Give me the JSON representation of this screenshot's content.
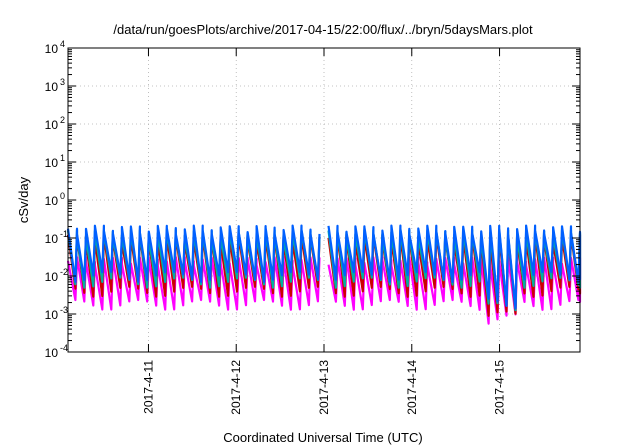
{
  "chart_data": {
    "type": "line",
    "title": "/data/run/goesPlots/archive/2017-04-15/22:00/flux/../bryn/5daysMars.plot",
    "xlabel": "Coordinated Universal Time (UTC)",
    "ylabel": "cSv/day",
    "yscale": "log",
    "ylim": [
      0.0001,
      10000
    ],
    "xlim": [
      "2017-04-10 02:00",
      "2017-04-15 22:00"
    ],
    "x_ticks": [
      "2017-4-11",
      "2017-4-12",
      "2017-4-13",
      "2017-4-14",
      "2017-4-15"
    ],
    "y_ticks": [
      {
        "value": 0.0001,
        "base": "10",
        "exp": "-4"
      },
      {
        "value": 0.001,
        "base": "10",
        "exp": "-3"
      },
      {
        "value": 0.01,
        "base": "10",
        "exp": "-2"
      },
      {
        "value": 0.1,
        "base": "10",
        "exp": "-1"
      },
      {
        "value": 1,
        "base": "10",
        "exp": "0"
      },
      {
        "value": 10,
        "base": "10",
        "exp": "1"
      },
      {
        "value": 100,
        "base": "10",
        "exp": "2"
      },
      {
        "value": 1000,
        "base": "10",
        "exp": "3"
      },
      {
        "value": 10000,
        "base": "10",
        "exp": "4"
      }
    ],
    "grid": true,
    "series": [
      {
        "color": "#ff00ff",
        "low": 0.0018,
        "high": 0.025,
        "dip_low": 0.00075
      },
      {
        "color": "#cc0000",
        "low": 0.004,
        "high": 0.1,
        "dip_low": 0.0009
      },
      {
        "color": "#00b0a0",
        "low": 0.007,
        "high": 0.13,
        "dip_low": 0.0015
      },
      {
        "color": "#0060ff",
        "low": 0.01,
        "high": 0.17,
        "dip_low": 0.002
      }
    ]
  }
}
